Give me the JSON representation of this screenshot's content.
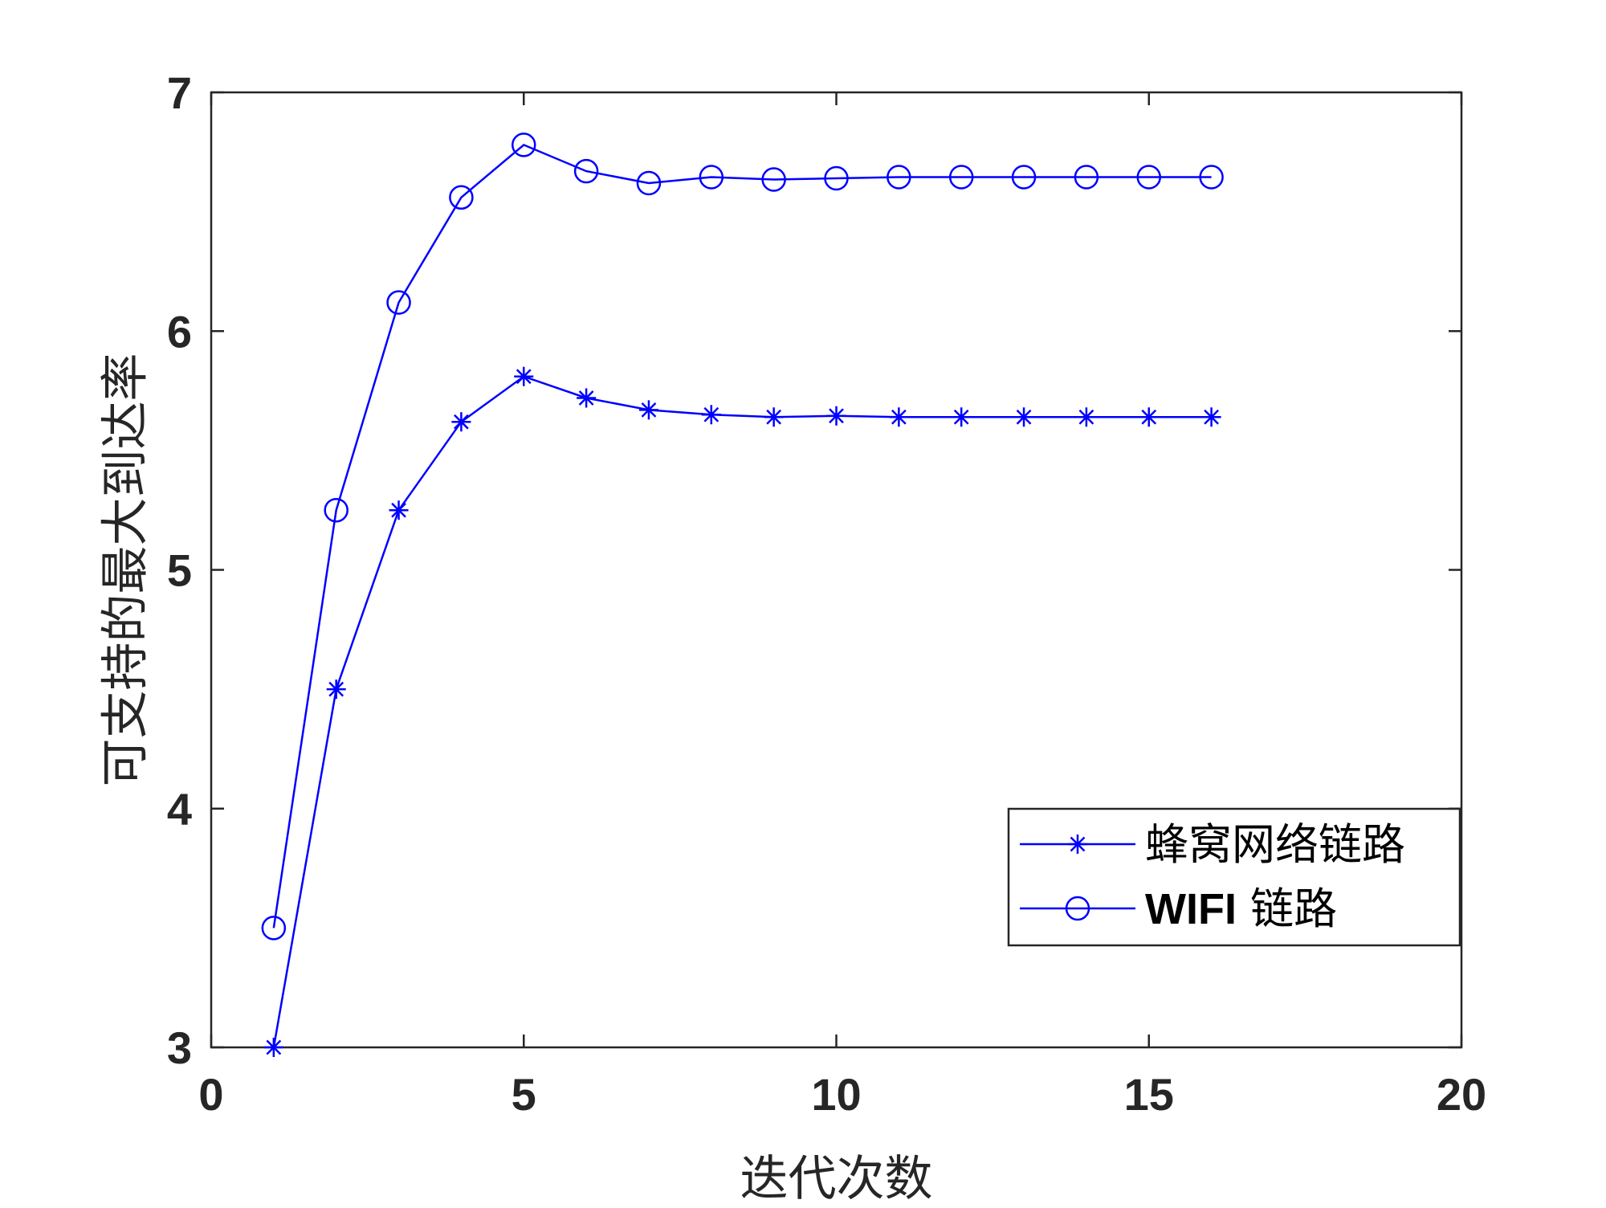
{
  "chart_data": {
    "type": "line",
    "title": "",
    "xlabel": "迭代次数",
    "ylabel": "可支持的最大到达率",
    "xlim": [
      0,
      20
    ],
    "ylim": [
      3,
      7
    ],
    "xticks": [
      0,
      5,
      10,
      15,
      20
    ],
    "yticks": [
      3,
      4,
      5,
      6,
      7
    ],
    "x_tick_labels": [
      "0",
      "5",
      "10",
      "15",
      "20"
    ],
    "y_tick_labels": [
      "3",
      "4",
      "5",
      "6",
      "7"
    ],
    "grid": false,
    "legend_position": "bottom-right",
    "x": [
      1,
      2,
      3,
      4,
      5,
      6,
      7,
      8,
      9,
      10,
      11,
      12,
      13,
      14,
      15,
      16
    ],
    "series": [
      {
        "name": "蜂窝网络链路",
        "marker": "asterisk",
        "color": "#0000ff",
        "values": [
          3.0,
          4.5,
          5.25,
          5.62,
          5.81,
          5.72,
          5.67,
          5.65,
          5.64,
          5.645,
          5.64,
          5.64,
          5.64,
          5.64,
          5.64,
          5.64
        ]
      },
      {
        "name": "WIFI 链路",
        "legend_bold_part": "WIFI",
        "legend_rest": " 链路",
        "marker": "circle",
        "color": "#0000ff",
        "values": [
          3.5,
          5.25,
          6.12,
          6.56,
          6.78,
          6.67,
          6.62,
          6.645,
          6.635,
          6.64,
          6.645,
          6.645,
          6.645,
          6.645,
          6.645,
          6.645
        ]
      }
    ]
  }
}
